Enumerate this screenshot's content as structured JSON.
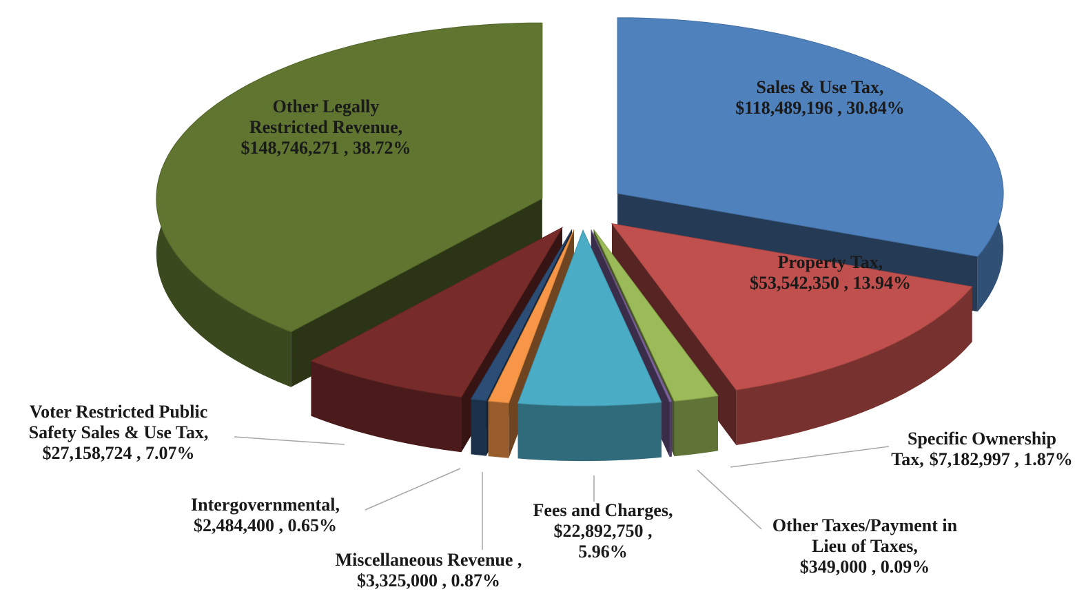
{
  "chart_data": {
    "type": "pie3d",
    "categories": [
      "Sales & Use Tax,",
      "Property Tax,",
      "Specific Ownership Tax,",
      "Other Taxes/Payment in Lieu of Taxes,",
      "Fees and Charges,",
      "Miscellaneous Revenue ,",
      "Intergovernmental,",
      "Voter Restricted Public Safety Sales & Use Tax,",
      "Other Legally Restricted Revenue,"
    ],
    "values": [
      118489196,
      53542350,
      7182997,
      349000,
      22892750,
      3325000,
      2484400,
      27158724,
      148746271
    ],
    "value_labels": [
      "$118,489,196 , 30.84%",
      "$53,542,350 , 13.94%",
      "$7,182,997 , 1.87%",
      "$349,000 , 0.09%",
      "$22,892,750 , 5.96%",
      "$3,325,000 , 0.87%",
      "$2,484,400 , 0.65%",
      "$27,158,724 , 7.07%",
      "$148,746,271 , 38.72%"
    ],
    "colors": [
      "#4f81bd",
      "#c0504d",
      "#9bbb59",
      "#8064a2",
      "#4bacc6",
      "#f79646",
      "#2c4d75",
      "#772c2a",
      "#5f7530"
    ]
  }
}
